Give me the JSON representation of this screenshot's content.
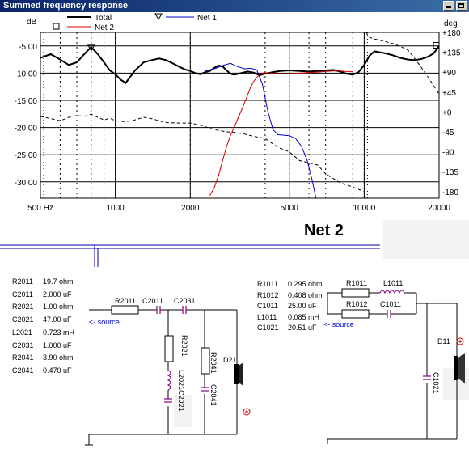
{
  "window": {
    "title": "Summed frequency response"
  },
  "legend": {
    "total": "Total",
    "net1": "Net 1",
    "net2": "Net 2"
  },
  "chart_data": {
    "type": "line",
    "ylabel_left": "dB",
    "ylabel_right": "deg",
    "x_scale": "log",
    "xlim": [
      500,
      20000
    ],
    "ylim": [
      -33,
      -2.5
    ],
    "y2lim": [
      -195,
      180
    ],
    "x_ticks": [
      "500 Hz",
      "1000",
      "2000",
      "5000",
      "10000",
      "20000"
    ],
    "x_tick_values": [
      500,
      1000,
      2000,
      5000,
      10000,
      20000
    ],
    "y_ticks": [
      "-5.00",
      "-10.00",
      "-15.00",
      "-20.00",
      "-25.00",
      "-30.00"
    ],
    "y_tick_values": [
      -5,
      -10,
      -15,
      -20,
      -25,
      -30
    ],
    "y2_ticks": [
      "+180",
      "+135",
      "+90",
      "+45",
      "+0",
      "-45",
      "-90",
      "-135",
      "-180"
    ],
    "y2_tick_values": [
      180,
      135,
      90,
      45,
      0,
      -45,
      -90,
      -135,
      -180
    ],
    "series": [
      {
        "name": "Total",
        "color": "#000000",
        "x": [
          500,
          550,
          600,
          650,
          700,
          750,
          800,
          850,
          900,
          950,
          1000,
          1050,
          1100,
          1200,
          1300,
          1400,
          1500,
          1600,
          1700,
          1800,
          1900,
          2000,
          2100,
          2200,
          2300,
          2400,
          2500,
          2600,
          2700,
          2800,
          2900,
          3000,
          3200,
          3400,
          3600,
          3800,
          4000,
          4300,
          4600,
          5000,
          5500,
          6000,
          6500,
          7000,
          7500,
          8000,
          8500,
          9000,
          9500,
          10000,
          10500,
          11000,
          12000,
          13000,
          14000,
          15000,
          16000,
          17000,
          18000,
          19000,
          20000
        ],
        "values": [
          -7.2,
          -6.5,
          -7.5,
          -8.5,
          -8.0,
          -6.5,
          -5.2,
          -6.5,
          -8.0,
          -9.5,
          -10.2,
          -11.2,
          -11.8,
          -9.5,
          -8.0,
          -7.6,
          -7.3,
          -7.6,
          -8.2,
          -8.8,
          -9.3,
          -9.6,
          -10.0,
          -10.2,
          -9.8,
          -9.6,
          -9.0,
          -8.6,
          -8.8,
          -9.5,
          -10.1,
          -10.3,
          -10.0,
          -9.7,
          -9.9,
          -10.4,
          -10.1,
          -9.8,
          -9.6,
          -9.5,
          -9.6,
          -9.7,
          -9.6,
          -9.5,
          -9.4,
          -9.7,
          -10.1,
          -10.3,
          -9.8,
          -8.5,
          -6.8,
          -6.0,
          -6.3,
          -6.7,
          -7.2,
          -7.5,
          -7.6,
          -7.4,
          -7.0,
          -6.4,
          -5.0
        ]
      },
      {
        "name": "Net 1",
        "color": "#0000cc",
        "x": [
          2300,
          2500,
          2700,
          2900,
          3100,
          3300,
          3500,
          3700,
          3900,
          4100,
          4300,
          4500,
          4700,
          5000,
          5300,
          5600,
          5900,
          6200,
          6400
        ],
        "values": [
          -9.6,
          -9.2,
          -8.6,
          -8.2,
          -8.8,
          -9.2,
          -9.1,
          -9.4,
          -12.0,
          -17.0,
          -20.4,
          -21.3,
          -21.4,
          -21.5,
          -22.0,
          -23.5,
          -26.0,
          -30.0,
          -33.0
        ]
      },
      {
        "name": "Net 2",
        "color": "#cc0000",
        "x": [
          2400,
          2500,
          2600,
          2700,
          2800,
          2900,
          3000,
          3100,
          3200,
          3300,
          3400,
          3500,
          3600,
          3700,
          3800,
          3900,
          4000,
          4200,
          4500,
          5000,
          5500,
          6000,
          6500,
          7000,
          7500,
          8000,
          8500,
          9000
        ],
        "values": [
          -32.5,
          -31.0,
          -28.8,
          -26.0,
          -23.5,
          -21.5,
          -20.0,
          -18.5,
          -17.0,
          -15.5,
          -14.0,
          -12.5,
          -11.5,
          -10.8,
          -10.2,
          -10.0,
          -9.9,
          -10.0,
          -10.1,
          -10.1,
          -10.0,
          -9.9,
          -9.8,
          -9.7,
          -9.6,
          -9.6,
          -9.7,
          -9.7
        ]
      },
      {
        "name": "Phase",
        "color": "#000000",
        "style": "dashed",
        "axis": "right",
        "x": [
          500,
          550,
          600,
          650,
          700,
          750,
          800,
          850,
          900,
          950,
          1000,
          1100,
          1200,
          1300,
          1400,
          1500,
          1600,
          1800,
          2000,
          2200,
          2500,
          2800,
          3000,
          3300,
          3600,
          4000,
          4500,
          5000,
          5500,
          6000,
          6500,
          7000,
          7500,
          8000,
          8500,
          9000,
          9500,
          10000,
          10200,
          10400,
          11000,
          12000,
          13000,
          14000,
          15000,
          16000,
          17000,
          18000,
          19000,
          20000
        ],
        "values": [
          -10,
          -15,
          -20,
          -12,
          -8,
          -10,
          -5,
          -12,
          -18,
          -14,
          -20,
          -22,
          -18,
          -12,
          -15,
          -20,
          -24,
          -25,
          -25,
          -30,
          -40,
          -45,
          -46,
          -50,
          -55,
          -60,
          -80,
          -90,
          -110,
          -115,
          -120,
          -140,
          -150,
          -160,
          -165,
          -170,
          -175,
          -180,
          180,
          170,
          165,
          160,
          155,
          148,
          140,
          120,
          100,
          80,
          60,
          40
        ]
      }
    ],
    "markers": [
      {
        "series": "Net 1",
        "shape": "triangle"
      },
      {
        "series": "Net 2",
        "shape": "square"
      }
    ]
  },
  "net2": {
    "title": "Net 2"
  },
  "schematic1": {
    "values": [
      {
        "ref": "R2011",
        "value": "19.7 ohm"
      },
      {
        "ref": "C2011",
        "value": "2.000 uF"
      },
      {
        "ref": "R2021",
        "value": "1.00 ohm"
      },
      {
        "ref": "C2021",
        "value": "47.00 uF"
      },
      {
        "ref": "L2021",
        "value": "0.723 mH"
      },
      {
        "ref": "C2031",
        "value": "1.000 uF"
      },
      {
        "ref": "R2041",
        "value": "3.90 ohm"
      },
      {
        "ref": "C2041",
        "value": "0.470 uF"
      }
    ],
    "labels": {
      "R2011": "R2011",
      "C2011": "C2011",
      "C2031": "C2031",
      "R2021": "R2021",
      "L2021": "L2021",
      "C2021": "C2021",
      "R2041": "R2041",
      "C2041": "C2041",
      "driver": "D21",
      "source": "<- source"
    }
  },
  "schematic2": {
    "values": [
      {
        "ref": "R1011",
        "value": "0.295 ohm"
      },
      {
        "ref": "R1012",
        "value": "0.408 ohm"
      },
      {
        "ref": "C1011",
        "value": "25.00 uF"
      },
      {
        "ref": "L1011",
        "value": "0.085 mH"
      },
      {
        "ref": "C1021",
        "value": "20.51 uF"
      }
    ],
    "labels": {
      "R1011": "R1011",
      "L1011": "L1011",
      "R1012": "R1012",
      "C1011": "C1011",
      "C1021": "C1021",
      "driver": "D11",
      "source": "<- source"
    }
  }
}
